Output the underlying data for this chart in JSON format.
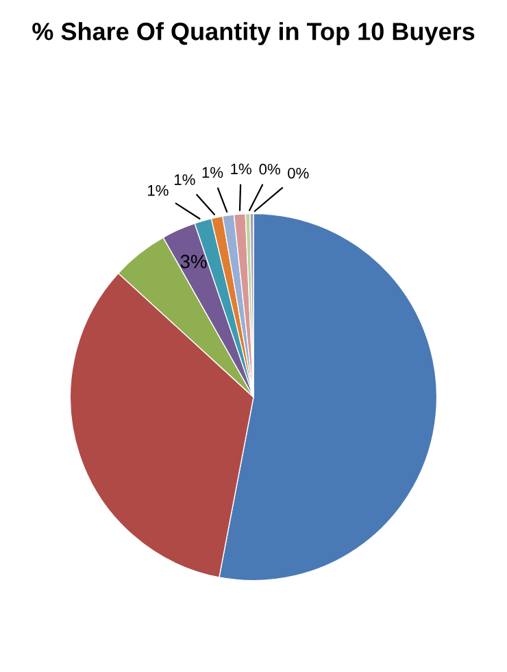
{
  "chart_data": {
    "type": "pie",
    "title": "% Share Of Quantity in Top 10 Buyers",
    "categories": [
      null,
      null,
      null,
      null,
      null,
      null,
      null,
      null,
      null,
      null
    ],
    "values": [
      53,
      33.8,
      5,
      3,
      1.5,
      1,
      1,
      1,
      0.4,
      0.3
    ],
    "value_labels": [
      null,
      null,
      null,
      "3%",
      "1%",
      "1%",
      "1%",
      "1%",
      "0%",
      "0%"
    ],
    "colors": [
      "#4a7ab5",
      "#b04a47",
      "#8faf50",
      "#735a94",
      "#3c9bb1",
      "#e07d32",
      "#97afd6",
      "#d89795",
      "#bcd49a",
      "#a99dc0"
    ],
    "legend": false
  }
}
